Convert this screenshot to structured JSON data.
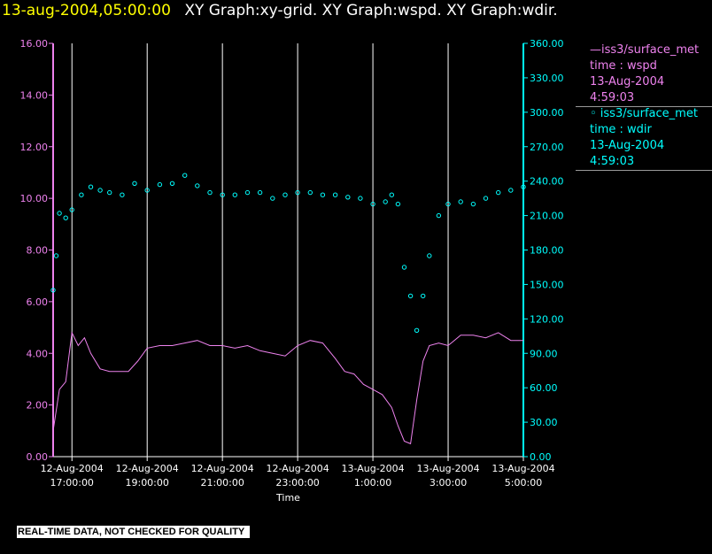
{
  "header": {
    "timestamp": "13-aug-2004,05:00:00",
    "graphs": "XY Graph:xy-grid.  XY Graph:wspd.  XY Graph:wdir."
  },
  "legend": [
    {
      "line1": "—iss3/surface_met",
      "line2": "time : wspd",
      "line3": "13-Aug-2004",
      "line4": "4:59:03",
      "color": "#ee82ee"
    },
    {
      "line1": "◦ iss3/surface_met",
      "line2": "time : wdir",
      "line3": "13-Aug-2004",
      "line4": "4:59:03",
      "color": "#00ffff"
    }
  ],
  "disclaimer": "REAL-TIME DATA, NOT CHECKED FOR QUALITY",
  "colors": {
    "background": "#000000",
    "wspd": "#ee82ee",
    "wdir": "#00ffff",
    "grid": "#ffffff",
    "axis_left": "#ee82ee",
    "axis_right": "#00ffff"
  },
  "chart_data": {
    "type": "line",
    "xlabel": "Time",
    "xlim": [
      "12-Aug-2004 16:30:00",
      "13-Aug-2004 05:00:00"
    ],
    "x_ticks": [
      {
        "date": "12-Aug-2004",
        "time": "17:00:00"
      },
      {
        "date": "12-Aug-2004",
        "time": "19:00:00"
      },
      {
        "date": "12-Aug-2004",
        "time": "21:00:00"
      },
      {
        "date": "12-Aug-2004",
        "time": "23:00:00"
      },
      {
        "date": "13-Aug-2004",
        "time": "1:00:00"
      },
      {
        "date": "13-Aug-2004",
        "time": "3:00:00"
      },
      {
        "date": "13-Aug-2004",
        "time": "5:00:00"
      }
    ],
    "y_left": {
      "ylim": [
        0,
        16
      ],
      "ticks": [
        "0.00",
        "2.00",
        "4.00",
        "6.00",
        "8.00",
        "10.00",
        "12.00",
        "14.00",
        "16.00"
      ]
    },
    "y_right": {
      "ylim": [
        0,
        360
      ],
      "ticks": [
        "0.00",
        "30.00",
        "60.00",
        "90.00",
        "120.00",
        "150.00",
        "180.00",
        "210.00",
        "240.00",
        "270.00",
        "300.00",
        "330.00",
        "360.00"
      ]
    },
    "grid": "vertical lines at x ticks",
    "series": [
      {
        "name": "iss3/surface_met time : wspd",
        "axis": "left",
        "style": "line",
        "x": [
          "12-Aug-2004 16:30",
          "12-Aug-2004 16:40",
          "12-Aug-2004 16:50",
          "12-Aug-2004 17:00",
          "12-Aug-2004 17:10",
          "12-Aug-2004 17:20",
          "12-Aug-2004 17:30",
          "12-Aug-2004 17:45",
          "12-Aug-2004 18:00",
          "12-Aug-2004 18:15",
          "12-Aug-2004 18:30",
          "12-Aug-2004 18:45",
          "12-Aug-2004 19:00",
          "12-Aug-2004 19:20",
          "12-Aug-2004 19:40",
          "12-Aug-2004 20:00",
          "12-Aug-2004 20:20",
          "12-Aug-2004 20:40",
          "12-Aug-2004 21:00",
          "12-Aug-2004 21:20",
          "12-Aug-2004 21:40",
          "12-Aug-2004 22:00",
          "12-Aug-2004 22:20",
          "12-Aug-2004 22:40",
          "12-Aug-2004 23:00",
          "12-Aug-2004 23:20",
          "12-Aug-2004 23:40",
          "13-Aug-2004 00:00",
          "13-Aug-2004 00:15",
          "13-Aug-2004 00:30",
          "13-Aug-2004 00:45",
          "13-Aug-2004 01:00",
          "13-Aug-2004 01:15",
          "13-Aug-2004 01:30",
          "13-Aug-2004 01:40",
          "13-Aug-2004 01:50",
          "13-Aug-2004 02:00",
          "13-Aug-2004 02:10",
          "13-Aug-2004 02:20",
          "13-Aug-2004 02:30",
          "13-Aug-2004 02:45",
          "13-Aug-2004 03:00",
          "13-Aug-2004 03:20",
          "13-Aug-2004 03:40",
          "13-Aug-2004 04:00",
          "13-Aug-2004 04:20",
          "13-Aug-2004 04:40",
          "13-Aug-2004 05:00"
        ],
        "values": [
          1.0,
          2.6,
          2.9,
          4.8,
          4.3,
          4.6,
          4.0,
          3.4,
          3.3,
          3.3,
          3.3,
          3.7,
          4.2,
          4.3,
          4.3,
          4.4,
          4.5,
          4.3,
          4.3,
          4.2,
          4.3,
          4.1,
          4.0,
          3.9,
          4.3,
          4.5,
          4.4,
          3.8,
          3.3,
          3.2,
          2.8,
          2.6,
          2.4,
          1.9,
          1.2,
          0.6,
          0.5,
          2.2,
          3.7,
          4.3,
          4.4,
          4.3,
          4.7,
          4.7,
          4.6,
          4.8,
          4.5,
          4.5
        ]
      },
      {
        "name": "iss3/surface_met time : wdir",
        "axis": "right",
        "style": "scatter",
        "x": [
          "12-Aug-2004 16:30",
          "12-Aug-2004 16:35",
          "12-Aug-2004 16:40",
          "12-Aug-2004 16:50",
          "12-Aug-2004 17:00",
          "12-Aug-2004 17:15",
          "12-Aug-2004 17:30",
          "12-Aug-2004 17:45",
          "12-Aug-2004 18:00",
          "12-Aug-2004 18:20",
          "12-Aug-2004 18:40",
          "12-Aug-2004 19:00",
          "12-Aug-2004 19:20",
          "12-Aug-2004 19:40",
          "12-Aug-2004 20:00",
          "12-Aug-2004 20:20",
          "12-Aug-2004 20:40",
          "12-Aug-2004 21:00",
          "12-Aug-2004 21:20",
          "12-Aug-2004 21:40",
          "12-Aug-2004 22:00",
          "12-Aug-2004 22:20",
          "12-Aug-2004 22:40",
          "12-Aug-2004 23:00",
          "12-Aug-2004 23:20",
          "12-Aug-2004 23:40",
          "13-Aug-2004 00:00",
          "13-Aug-2004 00:20",
          "13-Aug-2004 00:40",
          "13-Aug-2004 01:00",
          "13-Aug-2004 01:20",
          "13-Aug-2004 01:30",
          "13-Aug-2004 01:40",
          "13-Aug-2004 01:50",
          "13-Aug-2004 02:00",
          "13-Aug-2004 02:10",
          "13-Aug-2004 02:20",
          "13-Aug-2004 02:30",
          "13-Aug-2004 02:45",
          "13-Aug-2004 03:00",
          "13-Aug-2004 03:20",
          "13-Aug-2004 03:40",
          "13-Aug-2004 04:00",
          "13-Aug-2004 04:20",
          "13-Aug-2004 04:40",
          "13-Aug-2004 05:00"
        ],
        "values": [
          145,
          175,
          212,
          208,
          215,
          228,
          235,
          232,
          230,
          228,
          238,
          232,
          237,
          238,
          245,
          236,
          230,
          228,
          228,
          230,
          230,
          225,
          228,
          230,
          230,
          228,
          228,
          226,
          225,
          220,
          222,
          228,
          220,
          165,
          140,
          110,
          140,
          175,
          210,
          220,
          222,
          220,
          225,
          230,
          232,
          235
        ]
      }
    ]
  }
}
